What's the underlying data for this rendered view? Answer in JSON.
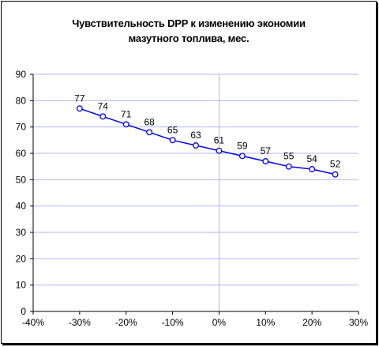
{
  "chart_data": {
    "type": "line",
    "title_lines": [
      "Чувствительность DPP к изменению экономии",
      "мазутного топлива, мес."
    ],
    "x": [
      "-30%",
      "-25%",
      "-20%",
      "-15%",
      "-10%",
      "-5%",
      "0%",
      "5%",
      "10%",
      "15%",
      "20%",
      "25%"
    ],
    "x_values": [
      -0.3,
      -0.25,
      -0.2,
      -0.15,
      -0.1,
      -0.05,
      0.0,
      0.05,
      0.1,
      0.15,
      0.2,
      0.25
    ],
    "values": [
      77,
      74,
      71,
      68,
      65,
      63,
      61,
      59,
      57,
      55,
      54,
      52
    ],
    "data_labels": [
      "77",
      "74",
      "71",
      "68",
      "65",
      "63",
      "61",
      "59",
      "57",
      "55",
      "54",
      "52"
    ],
    "x_ticks": [
      "-40%",
      "-30%",
      "-20%",
      "-10%",
      "0%",
      "10%",
      "20%",
      "30%"
    ],
    "x_tick_values": [
      -0.4,
      -0.3,
      -0.2,
      -0.1,
      0.0,
      0.1,
      0.2,
      0.3
    ],
    "y_ticks": [
      "0",
      "10",
      "20",
      "30",
      "40",
      "50",
      "60",
      "70",
      "80",
      "90"
    ],
    "y_tick_values": [
      0,
      10,
      20,
      30,
      40,
      50,
      60,
      70,
      80,
      90
    ],
    "xlim": [
      -0.4,
      0.3
    ],
    "ylim": [
      0,
      90
    ],
    "grid": "horizontal",
    "colors": {
      "line": "#0000ff",
      "grid": "#b3b3ff",
      "axis": "#000000",
      "marker_fill": "#ffffff"
    }
  }
}
